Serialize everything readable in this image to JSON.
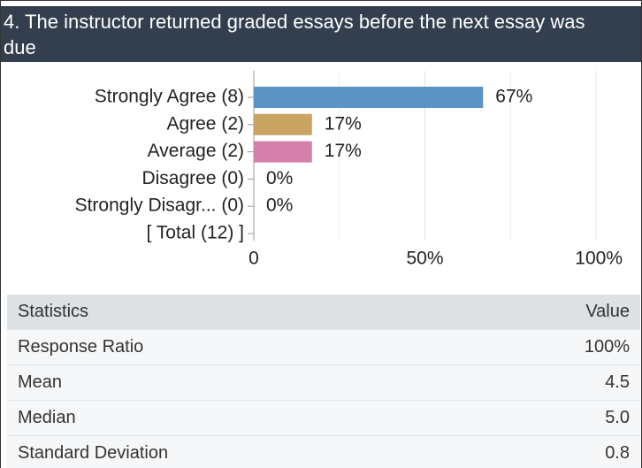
{
  "header": {
    "title": "4. The instructor returned graded essays before the next essay was due"
  },
  "chart_data": {
    "type": "bar",
    "orientation": "horizontal",
    "categories": [
      "Strongly Agree (8)",
      "Agree (2)",
      "Average (2)",
      "Disagree (0)",
      "Strongly Disagr... (0)",
      "[ Total (12) ]"
    ],
    "values": [
      67,
      17,
      17,
      0,
      0,
      null
    ],
    "value_labels": [
      "67%",
      "17%",
      "17%",
      "0%",
      "0%",
      null
    ],
    "colors": [
      "#5b93c5",
      "#c9a463",
      "#d57fab",
      "#999999",
      "#999999",
      "#999999"
    ],
    "xlim": [
      0,
      100
    ],
    "xticks": [
      0,
      {
        "value": 50,
        "label": "50%"
      },
      {
        "value": 100,
        "label": "100%"
      }
    ],
    "minor_xticks": [
      25,
      75
    ],
    "grid": true
  },
  "statistics": {
    "columns": [
      "Statistics",
      "Value"
    ],
    "rows": [
      [
        "Response Ratio",
        "100%"
      ],
      [
        "Mean",
        "4.5"
      ],
      [
        "Median",
        "5.0"
      ],
      [
        "Standard Deviation",
        "0.8"
      ]
    ]
  }
}
